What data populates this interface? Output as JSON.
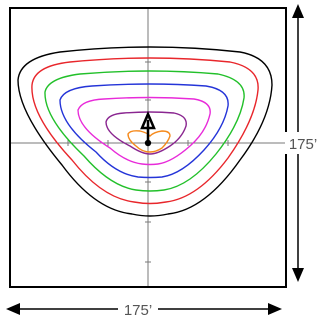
{
  "dimensions": {
    "vertical_label": "175’",
    "horizontal_label": "175’"
  },
  "colors": {
    "frame": "#000000",
    "crosshair": "#555555",
    "dimension_arrows": "#000000"
  },
  "contours": [
    {
      "color": "#000000"
    },
    {
      "color": "#e8262b"
    },
    {
      "color": "#22c02a"
    },
    {
      "color": "#2434d8"
    },
    {
      "color": "#e82ad9"
    },
    {
      "color": "#8a2690"
    },
    {
      "color": "#f58a1d"
    }
  ],
  "luminaire": {
    "symbol": "pole-with-arrow"
  }
}
